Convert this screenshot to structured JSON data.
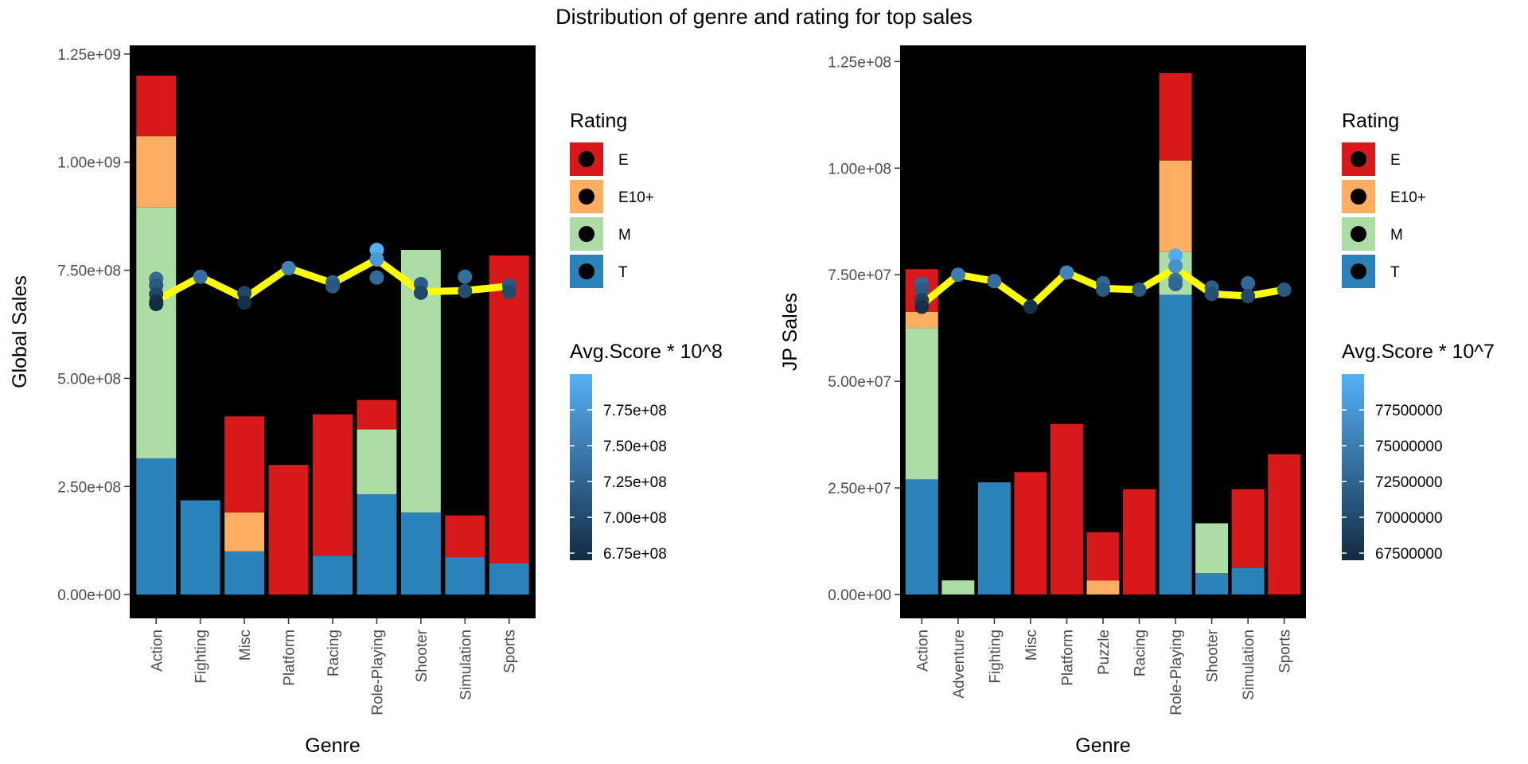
{
  "title": "Distribution of genre and rating for top sales",
  "colors": {
    "E": "#d7191c",
    "E10+": "#fdae61",
    "M": "#abdda4",
    "T": "#2b83ba",
    "panel_background": "#000000",
    "average_line": "#ffff00",
    "score_low": "#132b43",
    "score_high": "#56b1f7"
  },
  "chart_data": [
    {
      "type": "bar",
      "stacked": true,
      "xlabel": "Genre",
      "ylabel": "Global Sales",
      "categories": [
        "Action",
        "Fighting",
        "Misc",
        "Platform",
        "Racing",
        "Role-Playing",
        "Shooter",
        "Simulation",
        "Sports"
      ],
      "ylim": [
        -55000000,
        1270000000
      ],
      "y_ticks": [
        0,
        250000000,
        500000000,
        750000000,
        1000000000,
        1250000000
      ],
      "y_tick_labels": [
        "0.00e+00",
        "2.50e+08",
        "5.00e+08",
        "7.50e+08",
        "1.00e+09",
        "1.25e+09"
      ],
      "series": [
        {
          "name": "T",
          "values": [
            315000000,
            218000000,
            100000000,
            0,
            90000000,
            232000000,
            190000000,
            87000000,
            72000000
          ]
        },
        {
          "name": "M",
          "values": [
            580000000,
            0,
            0,
            0,
            0,
            150000000,
            607000000,
            0,
            0
          ]
        },
        {
          "name": "E10+",
          "values": [
            165000000,
            0,
            90000000,
            0,
            0,
            0,
            0,
            0,
            0
          ]
        },
        {
          "name": "E",
          "values": [
            140000000,
            0,
            222000000,
            300000000,
            327000000,
            68000000,
            0,
            96000000,
            712000000
          ]
        }
      ],
      "avg_score_line": [
        680000000,
        735000000,
        685000000,
        755000000,
        720000000,
        775000000,
        700000000,
        703000000,
        713000000
      ],
      "score_points": [
        {
          "category": "Action",
          "value": 730000000
        },
        {
          "category": "Action",
          "value": 715000000
        },
        {
          "category": "Action",
          "value": 695000000
        },
        {
          "category": "Action",
          "value": 678000000
        },
        {
          "category": "Action",
          "value": 672000000
        },
        {
          "category": "Fighting",
          "value": 735000000
        },
        {
          "category": "Misc",
          "value": 697000000
        },
        {
          "category": "Misc",
          "value": 675000000
        },
        {
          "category": "Platform",
          "value": 755000000
        },
        {
          "category": "Racing",
          "value": 722000000
        },
        {
          "category": "Racing",
          "value": 713000000
        },
        {
          "category": "Role-Playing",
          "value": 797000000
        },
        {
          "category": "Role-Playing",
          "value": 775000000
        },
        {
          "category": "Role-Playing",
          "value": 733000000
        },
        {
          "category": "Shooter",
          "value": 718000000
        },
        {
          "category": "Shooter",
          "value": 698000000
        },
        {
          "category": "Simulation",
          "value": 735000000
        },
        {
          "category": "Simulation",
          "value": 702000000
        },
        {
          "category": "Sports",
          "value": 715000000
        },
        {
          "category": "Sports",
          "value": 700000000
        }
      ],
      "legend_rating": {
        "title": "Rating",
        "entries": [
          "E",
          "E10+",
          "M",
          "T"
        ]
      },
      "legend_score": {
        "title": "Avg.Score * 10^8",
        "range": [
          670000000,
          800000000
        ],
        "ticks": [
          675000000,
          700000000,
          725000000,
          750000000,
          775000000
        ],
        "labels": [
          "6.75e+08",
          "7.00e+08",
          "7.25e+08",
          "7.50e+08",
          "7.75e+08"
        ]
      },
      "legend_placement": "right",
      "grid": false
    },
    {
      "type": "bar",
      "stacked": true,
      "xlabel": "Genre",
      "ylabel": "JP Sales",
      "categories": [
        "Action",
        "Adventure",
        "Fighting",
        "Misc",
        "Platform",
        "Puzzle",
        "Racing",
        "Role-Playing",
        "Shooter",
        "Simulation",
        "Sports"
      ],
      "ylim": [
        -5600000,
        128800000
      ],
      "y_ticks": [
        0,
        25000000,
        50000000,
        75000000,
        100000000,
        125000000
      ],
      "y_tick_labels": [
        "0.00e+00",
        "2.50e+07",
        "5.00e+07",
        "7.50e+07",
        "1.00e+08",
        "1.25e+08"
      ],
      "series": [
        {
          "name": "T",
          "values": [
            27000000,
            0,
            26300000,
            0,
            0,
            0,
            0,
            70300000,
            5000000,
            6300000,
            0
          ]
        },
        {
          "name": "M",
          "values": [
            35500000,
            3300000,
            0,
            0,
            0,
            0,
            0,
            10000000,
            11700000,
            0,
            0
          ]
        },
        {
          "name": "E10+",
          "values": [
            3800000,
            0,
            0,
            0,
            0,
            3300000,
            0,
            21500000,
            0,
            0,
            0
          ]
        },
        {
          "name": "E",
          "values": [
            10000000,
            0,
            0,
            28700000,
            40000000,
            11300000,
            24700000,
            20500000,
            0,
            18400000,
            32900000
          ]
        }
      ],
      "avg_score_line": [
        68000000,
        75000000,
        73500000,
        67500000,
        75500000,
        71800000,
        71500000,
        76500000,
        70500000,
        70000000,
        71500000
      ],
      "score_points": [
        {
          "category": "Action",
          "value": 72800000
        },
        {
          "category": "Action",
          "value": 71500000
        },
        {
          "category": "Action",
          "value": 69000000
        },
        {
          "category": "Action",
          "value": 67500000
        },
        {
          "category": "Adventure",
          "value": 75000000
        },
        {
          "category": "Fighting",
          "value": 73500000
        },
        {
          "category": "Misc",
          "value": 67500000
        },
        {
          "category": "Platform",
          "value": 75500000
        },
        {
          "category": "Puzzle",
          "value": 73000000
        },
        {
          "category": "Puzzle",
          "value": 71500000
        },
        {
          "category": "Racing",
          "value": 71500000
        },
        {
          "category": "Role-Playing",
          "value": 79500000
        },
        {
          "category": "Role-Playing",
          "value": 77000000
        },
        {
          "category": "Role-Playing",
          "value": 73800000
        },
        {
          "category": "Role-Playing",
          "value": 72800000
        },
        {
          "category": "Shooter",
          "value": 72000000
        },
        {
          "category": "Shooter",
          "value": 70500000
        },
        {
          "category": "Simulation",
          "value": 73000000
        },
        {
          "category": "Simulation",
          "value": 70000000
        },
        {
          "category": "Sports",
          "value": 71500000
        }
      ],
      "legend_rating": {
        "title": "Rating",
        "entries": [
          "E",
          "E10+",
          "M",
          "T"
        ]
      },
      "legend_score": {
        "title": "Avg.Score * 10^7",
        "range": [
          67000000,
          80000000
        ],
        "ticks": [
          67500000,
          70000000,
          72500000,
          75000000,
          77500000
        ],
        "labels": [
          "67500000",
          "70000000",
          "72500000",
          "75000000",
          "77500000"
        ]
      },
      "legend_placement": "right",
      "grid": false
    }
  ]
}
